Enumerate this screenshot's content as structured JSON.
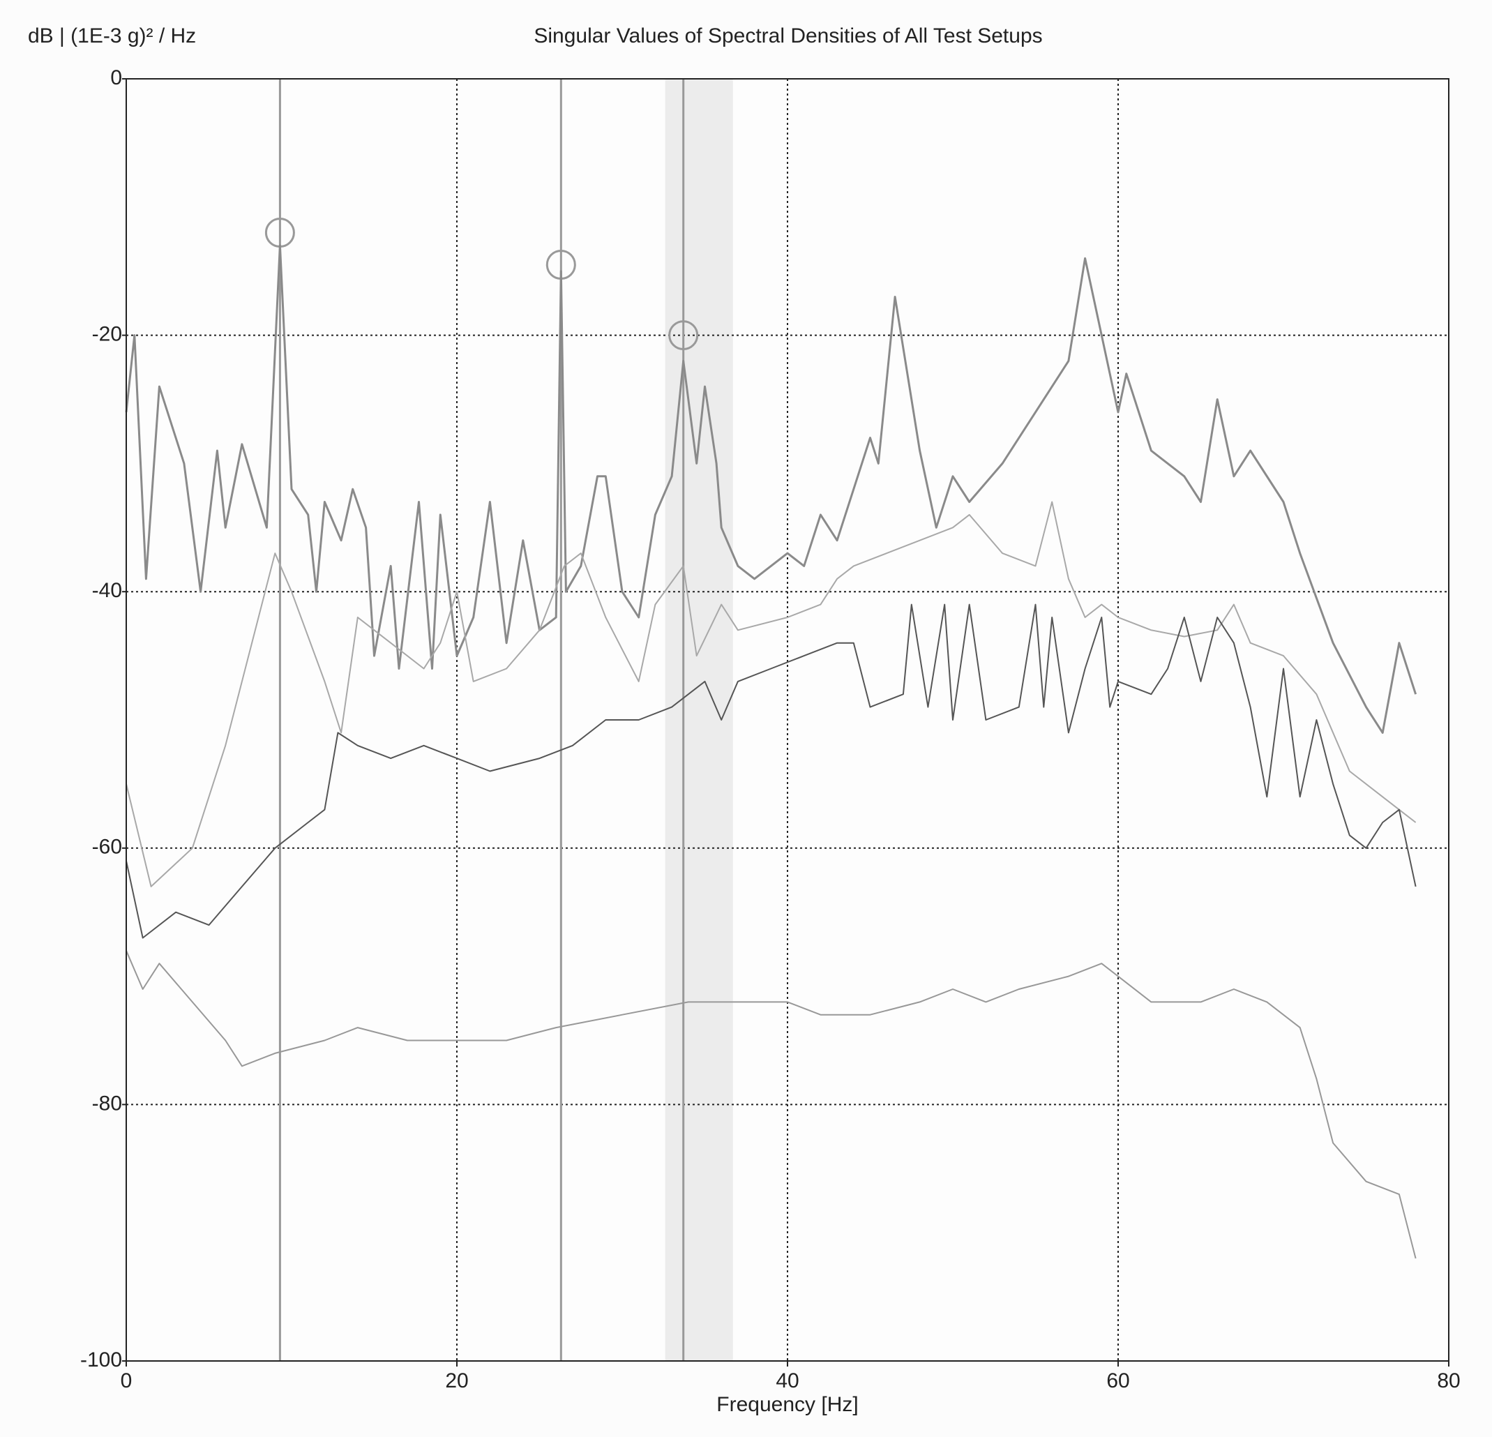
{
  "chart_data": {
    "type": "line",
    "title": "Singular Values of Spectral Densities of All Test Setups",
    "y_label": "dB | (1E-3 g)² / Hz",
    "x_label": "Frequency [Hz]",
    "xlim": [
      0,
      80
    ],
    "ylim": [
      -100,
      0
    ],
    "xticks": [
      0,
      20,
      40,
      60,
      80
    ],
    "yticks": [
      0,
      -20,
      -40,
      -60,
      -80,
      -100
    ],
    "grid": true,
    "highlight_bands": [
      [
        32.6,
        36.7
      ]
    ],
    "peak_markers": {
      "x": [
        9.3,
        26.3,
        33.7
      ],
      "values": [
        -12,
        -14.5,
        -20
      ],
      "color": "#999999"
    },
    "series": [
      {
        "color": "#8a8a8a",
        "x": [
          0,
          0.5,
          1.2,
          2,
          3.5,
          4.5,
          5.5,
          6,
          7,
          8.5,
          9.3,
          10,
          11,
          11.5,
          12,
          13,
          13.7,
          14.5,
          15,
          16,
          16.5,
          17.7,
          18.5,
          19,
          20,
          21,
          22,
          23,
          24,
          25,
          26,
          26.3,
          26.6,
          27.5,
          28.5,
          29,
          30,
          31,
          32,
          33,
          33.7,
          34.5,
          35,
          35.7,
          36,
          37,
          38,
          40,
          41,
          42,
          43,
          44,
          45,
          45.5,
          46.5,
          48,
          49,
          50,
          51,
          53,
          55,
          57,
          58,
          59,
          60,
          60.5,
          62,
          64,
          65,
          66,
          67,
          68,
          70,
          71,
          73,
          75,
          76,
          77,
          78
        ],
        "values": [
          -26,
          -20,
          -39,
          -24,
          -30,
          -40,
          -29,
          -35,
          -28.5,
          -35,
          -13,
          -32,
          -34,
          -40,
          -33,
          -36,
          -32,
          -35,
          -45,
          -38,
          -46,
          -33,
          -46,
          -34,
          -45,
          -42,
          -33,
          -44,
          -36,
          -43,
          -42,
          -15,
          -40,
          -38,
          -31,
          -31,
          -40,
          -42,
          -34,
          -31,
          -22,
          -30,
          -24,
          -30,
          -35,
          -38,
          -39,
          -37,
          -38,
          -34,
          -36,
          -32,
          -28,
          -30,
          -17,
          -29,
          -35,
          -31,
          -33,
          -30,
          -26,
          -22,
          -14,
          -20,
          -26,
          -23,
          -29,
          -31,
          -33,
          -25,
          -31,
          -29,
          -33,
          -37,
          -44,
          -49,
          -51,
          -44,
          -48
        ]
      },
      {
        "color": "#a8a8a8",
        "x": [
          0,
          1.5,
          4,
          6,
          8,
          9,
          10,
          12,
          13,
          14,
          16,
          18,
          19,
          20,
          21,
          23,
          25,
          26.5,
          27.5,
          29,
          31,
          32,
          33.7,
          34.5,
          36,
          37,
          40,
          42,
          43,
          44,
          46,
          48,
          50,
          51,
          53,
          55,
          56,
          57,
          58,
          59,
          60,
          62,
          64,
          66,
          67,
          68,
          70,
          72,
          74,
          76,
          77,
          78
        ],
        "values": [
          -55,
          -63,
          -60,
          -52,
          -42,
          -37,
          -40,
          -47,
          -51,
          -42,
          -44,
          -46,
          -44,
          -40,
          -47,
          -46,
          -43,
          -38,
          -37,
          -42,
          -47,
          -41,
          -38,
          -45,
          -41,
          -43,
          -42,
          -41,
          -39,
          -38,
          -37,
          -36,
          -35,
          -34,
          -37,
          -38,
          -33,
          -39,
          -42,
          -41,
          -42,
          -43,
          -43.5,
          -43,
          -41,
          -44,
          -45,
          -48,
          -54,
          -56,
          -57,
          -58
        ]
      },
      {
        "color": "#555555",
        "x": [
          0,
          1,
          3,
          5,
          7,
          9,
          11,
          12,
          12.8,
          14,
          16,
          18,
          20,
          22,
          25,
          27,
          29,
          31,
          33,
          35,
          36,
          37,
          39,
          41,
          43,
          44,
          45,
          47,
          47.5,
          48.5,
          49.5,
          50,
          51,
          52,
          54,
          55,
          55.5,
          56,
          57,
          58,
          59,
          59.5,
          60,
          62,
          63,
          64,
          65,
          66,
          67,
          68,
          69,
          70,
          71,
          72,
          73,
          74,
          75,
          76,
          77,
          78
        ],
        "values": [
          -61,
          -67,
          -65,
          -66,
          -63,
          -60,
          -58,
          -57,
          -51,
          -52,
          -53,
          -52,
          -53,
          -54,
          -53,
          -52,
          -50,
          -50,
          -49,
          -47,
          -50,
          -47,
          -46,
          -45,
          -44,
          -44,
          -49,
          -48,
          -41,
          -49,
          -41,
          -50,
          -41,
          -50,
          -49,
          -41,
          -49,
          -42,
          -51,
          -46,
          -42,
          -49,
          -47,
          -48,
          -46,
          -42,
          -47,
          -42,
          -44,
          -49,
          -56,
          -46,
          -56,
          -50,
          -55,
          -59,
          -60,
          -58,
          -57,
          -63
        ]
      },
      {
        "color": "#989898",
        "x": [
          0,
          1,
          2,
          4,
          6,
          7,
          9,
          12,
          14,
          17,
          20,
          23,
          26,
          30,
          34,
          36,
          40,
          42,
          45,
          48,
          50,
          52,
          54,
          57,
          59,
          60,
          62,
          65,
          67,
          69,
          71,
          72,
          73,
          75,
          77,
          78
        ],
        "values": [
          -68,
          -71,
          -69,
          -72,
          -75,
          -77,
          -76,
          -75,
          -74,
          -75,
          -75,
          -75,
          -74,
          -73,
          -72,
          -72,
          -72,
          -73,
          -73,
          -72,
          -71,
          -72,
          -71,
          -70,
          -69,
          -70,
          -72,
          -72,
          -71,
          -72,
          -74,
          -78,
          -83,
          -86,
          -87,
          -92
        ]
      }
    ]
  }
}
